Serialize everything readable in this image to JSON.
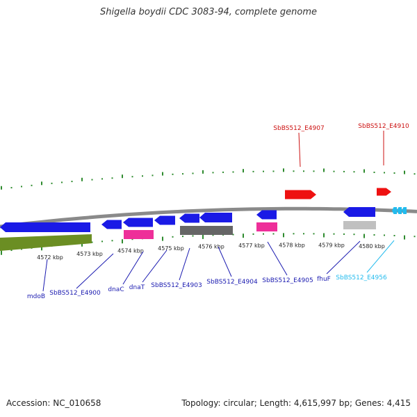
{
  "title": "Shigella boydii CDC 3083-94, complete genome",
  "footer": {
    "accession": "Accession: NC_010658",
    "stats": "Topology: circular; Length: 4,615,997 bp; Genes: 4,415"
  },
  "colors": {
    "background": "#ffffff",
    "backbone": "#8a8a8a",
    "tick_green": "#2e8b2e",
    "forward_gene": "#ee1111",
    "reverse_gene": "#1a1ae6",
    "reverse_gene_highlight": "#22bbee",
    "rna_magenta": "#ee2f99",
    "olive_feature": "#6b8e23",
    "dark_gray_feature": "#666666",
    "light_gray_feature": "#c0c0c0",
    "label_blue": "#1a1ab0",
    "label_red": "#cc1111",
    "label_cyan": "#22bbee"
  },
  "scale_labels": [
    {
      "kbp": 4572,
      "label": "4572 kbp"
    },
    {
      "kbp": 4573,
      "label": "4573 kbp"
    },
    {
      "kbp": 4574,
      "label": "4574 kbp"
    },
    {
      "kbp": 4575,
      "label": "4575 kbp"
    },
    {
      "kbp": 4576,
      "label": "4576 kbp"
    },
    {
      "kbp": 4577,
      "label": "4577 kbp"
    },
    {
      "kbp": 4578,
      "label": "4578 kbp"
    },
    {
      "kbp": 4579,
      "label": "4579 kbp"
    },
    {
      "kbp": 4580,
      "label": "4580 kbp"
    }
  ],
  "forward_gene_labels": [
    "SbBS512_E4907",
    "SbBS512_E4910"
  ],
  "reverse_gene_labels": [
    "mdoB",
    "SbBS512_E4900",
    "dnaC",
    "dnaT",
    "SbBS512_E4903",
    "SbBS512_E4904",
    "SbBS512_E4905",
    "fhuF",
    "SbBS512_E4956"
  ]
}
